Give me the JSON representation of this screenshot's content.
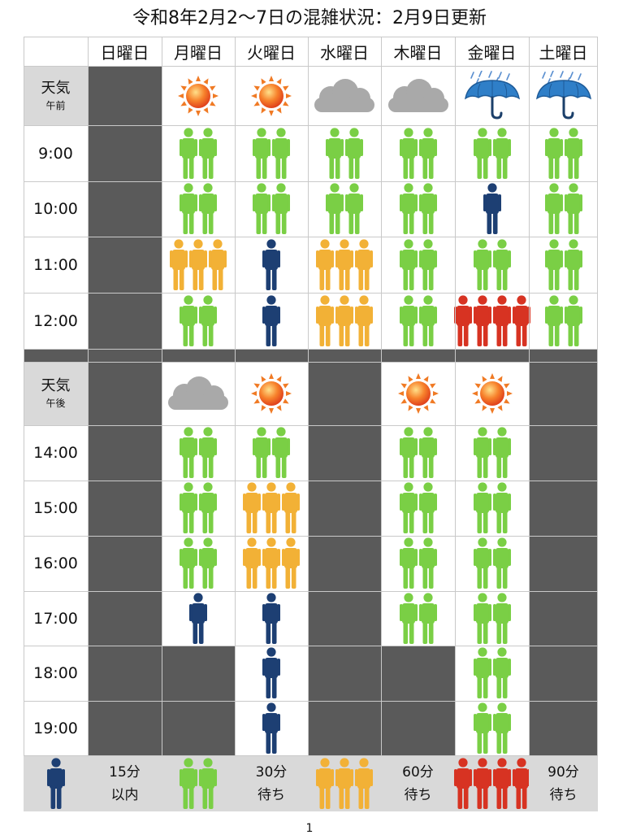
{
  "title": "令和8年2月2〜7日の混雑状況：2月9日更新",
  "days": [
    "日曜日",
    "月曜日",
    "火曜日",
    "水曜日",
    "木曜日",
    "金曜日",
    "土曜日"
  ],
  "weather_label": {
    "am_main": "天気",
    "am_sub": "午前",
    "pm_main": "天気",
    "pm_sub": "午後"
  },
  "weather_icons": {
    "am": [
      null,
      "sun-icon",
      "sun-icon",
      "cloud-icon",
      "cloud-icon",
      "umbrella-rain-icon",
      "umbrella-rain-icon"
    ],
    "pm": [
      null,
      "cloud-icon",
      "sun-icon",
      null,
      "sun-icon",
      "sun-icon",
      null
    ]
  },
  "am_times": [
    "9:00",
    "10:00",
    "11:00",
    "12:00"
  ],
  "pm_times": [
    "14:00",
    "15:00",
    "16:00",
    "17:00",
    "18:00",
    "19:00"
  ],
  "crowd_levels": {
    "am": [
      [
        0,
        2,
        2,
        2,
        2,
        2,
        2
      ],
      [
        0,
        2,
        2,
        2,
        2,
        1,
        2
      ],
      [
        0,
        3,
        1,
        3,
        2,
        2,
        2
      ],
      [
        0,
        2,
        1,
        3,
        2,
        4,
        2
      ]
    ],
    "pm": [
      [
        0,
        2,
        2,
        0,
        2,
        2,
        0
      ],
      [
        0,
        2,
        3,
        0,
        2,
        2,
        0
      ],
      [
        0,
        2,
        3,
        0,
        2,
        2,
        0
      ],
      [
        0,
        1,
        1,
        0,
        2,
        2,
        0
      ],
      [
        0,
        0,
        1,
        0,
        0,
        2,
        0
      ],
      [
        0,
        0,
        1,
        0,
        0,
        2,
        0
      ]
    ]
  },
  "level_colors": {
    "1": "#1d3f73",
    "2": "#7acf45",
    "3": "#f2b136",
    "4": "#d73322"
  },
  "legend": [
    {
      "level": 1,
      "line1": "15分",
      "line2": "以内"
    },
    {
      "level": 2,
      "line1": "30分",
      "line2": "待ち"
    },
    {
      "level": 3,
      "line1": "60分",
      "line2": "待ち"
    },
    {
      "level": 4,
      "line1": "90分",
      "line2": "待ち"
    }
  ],
  "page_number": "1"
}
